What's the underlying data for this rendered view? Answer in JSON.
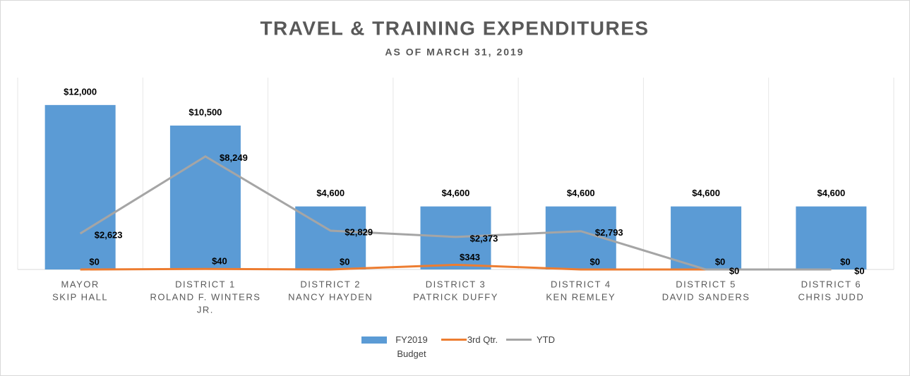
{
  "chart_data": {
    "type": "bar_line",
    "title": "TRAVEL & TRAINING EXPENDITURES",
    "subtitle": "AS OF MARCH 31, 2019",
    "categories": [
      [
        "MAYOR",
        "SKIP HALL"
      ],
      [
        "DISTRICT 1",
        "ROLAND F. WINTERS",
        "JR."
      ],
      [
        "DISTRICT 2",
        "NANCY HAYDEN"
      ],
      [
        "DISTRICT 3",
        "PATRICK DUFFY"
      ],
      [
        "DISTRICT 4",
        "KEN REMLEY"
      ],
      [
        "DISTRICT 5",
        "DAVID SANDERS"
      ],
      [
        "DISTRICT 6",
        "CHRIS JUDD"
      ]
    ],
    "ylim": [
      0,
      14000
    ],
    "series": [
      {
        "name": "FY2019 Budget",
        "kind": "bar",
        "color": "#5b9bd5",
        "values": [
          12000,
          10500,
          4600,
          4600,
          4600,
          4600,
          4600
        ],
        "value_labels": [
          "$12,000",
          "$10,500",
          "$4,600",
          "$4,600",
          "$4,600",
          "$4,600",
          "$4,600"
        ]
      },
      {
        "name": "3rd Qtr.",
        "kind": "line",
        "color": "#ed7d31",
        "values": [
          0,
          40,
          0,
          343,
          0,
          0,
          0
        ],
        "value_labels": [
          "$0",
          "$40",
          "$0",
          "$343",
          "$0",
          "$0",
          "$0"
        ]
      },
      {
        "name": "YTD",
        "kind": "line",
        "color": "#a5a5a5",
        "values": [
          2623,
          8249,
          2829,
          2373,
          2793,
          0,
          0
        ],
        "value_labels": [
          "$2,623",
          "$8,249",
          "$2,829",
          "$2,373",
          "$2,793",
          "$0",
          "$0"
        ]
      }
    ]
  }
}
